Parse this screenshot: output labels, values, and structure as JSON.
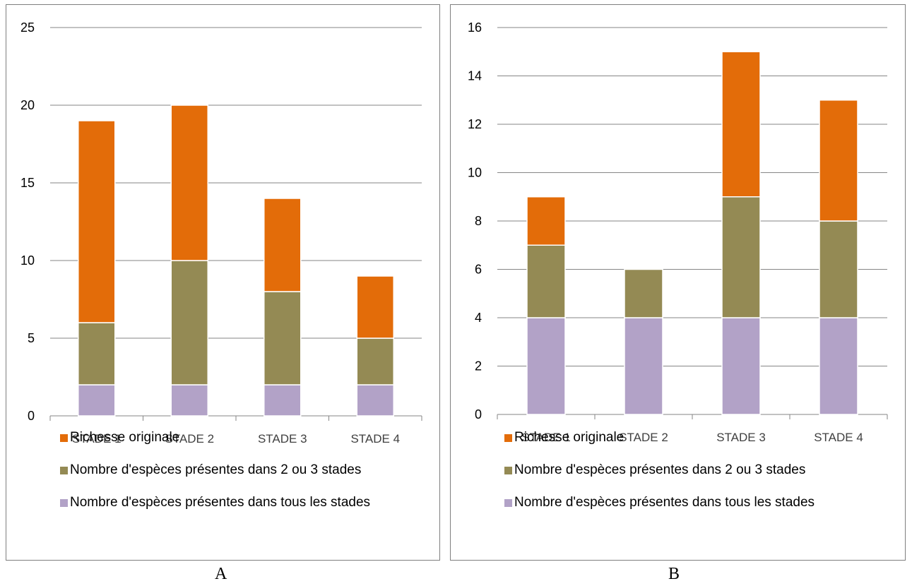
{
  "colors": {
    "richesse": "#E36C09",
    "deux_trois": "#948A54",
    "tous": "#B2A2C7",
    "grid": "#868686"
  },
  "legend": [
    {
      "key": "richesse",
      "label": "Richesse originale"
    },
    {
      "key": "deux_trois",
      "label": "Nombre d'espèces présentes dans 2 ou 3 stades"
    },
    {
      "key": "tous",
      "label": "Nombre d'espèces présentes dans tous les stades"
    }
  ],
  "chart_data": [
    {
      "type": "bar",
      "stacked": true,
      "panel_label": "A",
      "categories": [
        "STADE 1",
        "STADE 2",
        "STADE 3",
        "STADE 4"
      ],
      "ylim": [
        0,
        25
      ],
      "yticks": [
        0,
        5,
        10,
        15,
        20,
        25
      ],
      "grid": true,
      "legend_position": "bottom",
      "series": [
        {
          "name": "Nombre d'espèces présentes dans tous les stades",
          "key": "tous",
          "values": [
            2,
            2,
            2,
            2
          ]
        },
        {
          "name": "Nombre d'espèces présentes dans 2 ou 3 stades",
          "key": "deux_trois",
          "values": [
            4,
            8,
            6,
            3
          ]
        },
        {
          "name": "Richesse originale",
          "key": "richesse",
          "values": [
            13,
            10,
            6,
            4
          ]
        }
      ]
    },
    {
      "type": "bar",
      "stacked": true,
      "panel_label": "B",
      "categories": [
        "STADE 1",
        "STADE 2",
        "STADE 3",
        "STADE 4"
      ],
      "ylim": [
        0,
        16
      ],
      "yticks": [
        0,
        2,
        4,
        6,
        8,
        10,
        12,
        14,
        16
      ],
      "grid": true,
      "legend_position": "bottom",
      "series": [
        {
          "name": "Nombre d'espèces présentes dans tous les stades",
          "key": "tous",
          "values": [
            4,
            4,
            4,
            4
          ]
        },
        {
          "name": "Nombre d'espèces présentes dans 2 ou 3 stades",
          "key": "deux_trois",
          "values": [
            3,
            2,
            5,
            4
          ]
        },
        {
          "name": "Richesse originale",
          "key": "richesse",
          "values": [
            2,
            0,
            6,
            5
          ]
        }
      ]
    }
  ]
}
